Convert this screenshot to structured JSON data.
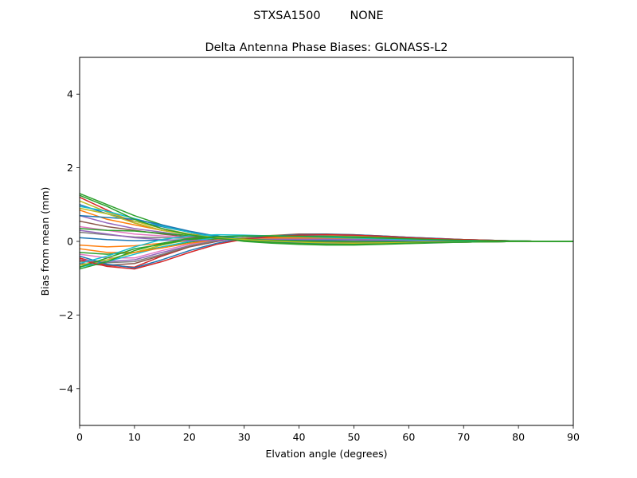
{
  "figure": {
    "suptitle": "STXSA1500        NONE"
  },
  "chart_data": {
    "type": "line",
    "title": "Delta Antenna Phase Biases: GLONASS-L2",
    "xlabel": "Elvation angle (degrees)",
    "ylabel": "Bias from mean (mm)",
    "xlim": [
      0,
      90
    ],
    "ylim": [
      -5,
      5
    ],
    "xticks": [
      0,
      10,
      20,
      30,
      40,
      50,
      60,
      70,
      80,
      90
    ],
    "yticks": [
      -4,
      -2,
      0,
      2,
      4
    ],
    "ytick_labels": [
      "−4",
      "−2",
      "0",
      "2",
      "4"
    ],
    "grid": false,
    "legend": "none",
    "x": [
      0,
      5,
      10,
      15,
      20,
      25,
      30,
      35,
      40,
      45,
      50,
      55,
      60,
      65,
      70,
      75,
      80,
      85,
      90
    ],
    "series": [
      {
        "color": "#1f77b4",
        "values": [
          1.0,
          0.75,
          0.55,
          0.4,
          0.25,
          0.15,
          0.05,
          0.0,
          -0.05,
          -0.08,
          -0.08,
          -0.06,
          -0.04,
          -0.03,
          -0.02,
          -0.01,
          0.0,
          0.0,
          0.0
        ]
      },
      {
        "color": "#ff7f0e",
        "values": [
          0.85,
          0.6,
          0.45,
          0.3,
          0.2,
          0.12,
          0.06,
          0.02,
          -0.02,
          -0.05,
          -0.06,
          -0.05,
          -0.04,
          -0.03,
          -0.02,
          -0.01,
          0.0,
          0.0,
          0.0
        ]
      },
      {
        "color": "#2ca02c",
        "values": [
          1.3,
          1.0,
          0.7,
          0.45,
          0.25,
          0.1,
          0.0,
          -0.05,
          -0.08,
          -0.1,
          -0.1,
          -0.08,
          -0.06,
          -0.04,
          -0.02,
          -0.01,
          0.0,
          0.0,
          0.0
        ]
      },
      {
        "color": "#d62728",
        "values": [
          1.2,
          0.85,
          0.5,
          0.3,
          0.2,
          0.12,
          0.05,
          0.0,
          -0.04,
          -0.07,
          -0.07,
          -0.06,
          -0.04,
          -0.03,
          -0.02,
          -0.01,
          0.0,
          0.0,
          0.0
        ]
      },
      {
        "color": "#9467bd",
        "values": [
          0.7,
          0.5,
          0.35,
          0.25,
          0.15,
          0.1,
          0.05,
          0.02,
          0.0,
          -0.02,
          -0.03,
          -0.03,
          -0.02,
          -0.02,
          -0.01,
          0.0,
          0.0,
          0.0,
          0.0
        ]
      },
      {
        "color": "#8c564b",
        "values": [
          0.55,
          0.4,
          0.3,
          0.2,
          0.12,
          0.08,
          0.04,
          0.02,
          0.0,
          -0.01,
          -0.02,
          -0.02,
          -0.02,
          -0.01,
          -0.01,
          0.0,
          0.0,
          0.0,
          0.0
        ]
      },
      {
        "color": "#e377c2",
        "values": [
          0.4,
          0.3,
          0.2,
          0.15,
          0.1,
          0.06,
          0.03,
          0.02,
          0.01,
          0.0,
          -0.01,
          -0.01,
          -0.01,
          -0.01,
          0.0,
          0.0,
          0.0,
          0.0,
          0.0
        ]
      },
      {
        "color": "#7f7f7f",
        "values": [
          0.25,
          0.18,
          0.12,
          0.1,
          0.08,
          0.06,
          0.04,
          0.03,
          0.02,
          0.02,
          0.01,
          0.01,
          0.01,
          0.0,
          0.0,
          0.0,
          0.0,
          0.0,
          0.0
        ]
      },
      {
        "color": "#bcbd22",
        "values": [
          1.1,
          0.8,
          0.55,
          0.35,
          0.2,
          0.1,
          0.03,
          -0.02,
          -0.05,
          -0.07,
          -0.07,
          -0.06,
          -0.05,
          -0.03,
          -0.02,
          -0.01,
          0.0,
          0.0,
          0.0
        ]
      },
      {
        "color": "#17becf",
        "values": [
          0.95,
          0.82,
          0.62,
          0.42,
          0.25,
          0.12,
          0.04,
          -0.02,
          -0.05,
          -0.06,
          -0.06,
          -0.05,
          -0.04,
          -0.03,
          -0.02,
          -0.01,
          0.0,
          0.0,
          0.0
        ]
      },
      {
        "color": "#1f77b4",
        "values": [
          0.1,
          0.05,
          0.02,
          0.03,
          0.05,
          0.06,
          0.06,
          0.05,
          0.05,
          0.04,
          0.04,
          0.03,
          0.02,
          0.02,
          0.01,
          0.01,
          0.0,
          0.0,
          0.0
        ]
      },
      {
        "color": "#ff7f0e",
        "values": [
          -0.1,
          -0.15,
          -0.12,
          -0.05,
          0.02,
          0.06,
          0.08,
          0.09,
          0.09,
          0.08,
          0.07,
          0.06,
          0.05,
          0.03,
          0.02,
          0.01,
          0.01,
          0.0,
          0.0
        ]
      },
      {
        "color": "#2ca02c",
        "values": [
          -0.3,
          -0.35,
          -0.3,
          -0.15,
          -0.02,
          0.06,
          0.1,
          0.12,
          0.12,
          0.11,
          0.1,
          0.08,
          0.06,
          0.04,
          0.03,
          0.02,
          0.01,
          0.0,
          0.0
        ]
      },
      {
        "color": "#d62728",
        "values": [
          -0.45,
          -0.65,
          -0.7,
          -0.4,
          -0.15,
          0.0,
          0.1,
          0.15,
          0.17,
          0.17,
          0.15,
          0.12,
          0.09,
          0.06,
          0.04,
          0.02,
          0.01,
          0.0,
          0.0
        ]
      },
      {
        "color": "#9467bd",
        "values": [
          -0.5,
          -0.55,
          -0.5,
          -0.3,
          -0.12,
          0.02,
          0.1,
          0.15,
          0.18,
          0.18,
          0.16,
          0.13,
          0.1,
          0.07,
          0.05,
          0.03,
          0.01,
          0.0,
          0.0
        ]
      },
      {
        "color": "#8c564b",
        "values": [
          -0.6,
          -0.65,
          -0.6,
          -0.38,
          -0.15,
          0.0,
          0.1,
          0.16,
          0.2,
          0.2,
          0.18,
          0.15,
          0.11,
          0.08,
          0.05,
          0.03,
          0.01,
          0.0,
          0.0
        ]
      },
      {
        "color": "#e377c2",
        "values": [
          -0.35,
          -0.45,
          -0.45,
          -0.25,
          -0.08,
          0.04,
          0.1,
          0.14,
          0.16,
          0.16,
          0.15,
          0.12,
          0.09,
          0.06,
          0.04,
          0.02,
          0.01,
          0.0,
          0.0
        ]
      },
      {
        "color": "#7f7f7f",
        "values": [
          -0.55,
          -0.58,
          -0.55,
          -0.35,
          -0.12,
          0.02,
          0.1,
          0.15,
          0.18,
          0.18,
          0.16,
          0.13,
          0.1,
          0.07,
          0.04,
          0.02,
          0.01,
          0.0,
          0.0
        ]
      },
      {
        "color": "#bcbd22",
        "values": [
          -0.65,
          -0.5,
          -0.3,
          -0.1,
          0.05,
          0.12,
          0.15,
          0.16,
          0.16,
          0.15,
          0.13,
          0.11,
          0.08,
          0.05,
          0.03,
          0.02,
          0.01,
          0.0,
          0.0
        ]
      },
      {
        "color": "#17becf",
        "values": [
          -0.7,
          -0.55,
          -0.35,
          -0.15,
          0.0,
          0.1,
          0.14,
          0.15,
          0.15,
          0.14,
          0.12,
          0.1,
          0.07,
          0.05,
          0.03,
          0.02,
          0.01,
          0.0,
          0.0
        ]
      },
      {
        "color": "#1f77b4",
        "values": [
          -0.4,
          -0.62,
          -0.72,
          -0.5,
          -0.25,
          -0.05,
          0.08,
          0.14,
          0.18,
          0.19,
          0.18,
          0.15,
          0.11,
          0.08,
          0.05,
          0.03,
          0.01,
          0.0,
          0.0
        ]
      },
      {
        "color": "#ff7f0e",
        "values": [
          -0.2,
          -0.3,
          -0.3,
          -0.18,
          -0.05,
          0.04,
          0.08,
          0.1,
          0.11,
          0.11,
          0.1,
          0.08,
          0.06,
          0.04,
          0.03,
          0.02,
          0.01,
          0.0,
          0.0
        ]
      },
      {
        "color": "#2ca02c",
        "values": [
          -0.7,
          -0.45,
          -0.2,
          -0.08,
          0.05,
          0.12,
          0.15,
          0.15,
          0.14,
          0.13,
          0.12,
          0.1,
          0.08,
          0.05,
          0.03,
          0.02,
          0.01,
          0.0,
          0.0
        ]
      },
      {
        "color": "#d62728",
        "values": [
          -0.5,
          -0.68,
          -0.75,
          -0.55,
          -0.3,
          -0.08,
          0.06,
          0.13,
          0.17,
          0.18,
          0.17,
          0.14,
          0.1,
          0.07,
          0.05,
          0.03,
          0.01,
          0.0,
          0.0
        ]
      },
      {
        "color": "#9467bd",
        "values": [
          0.3,
          0.2,
          0.1,
          0.05,
          0.02,
          0.03,
          0.05,
          0.06,
          0.06,
          0.06,
          0.05,
          0.04,
          0.03,
          0.02,
          0.01,
          0.01,
          0.0,
          0.0,
          0.0
        ]
      },
      {
        "color": "#1f77b4",
        "values": [
          0.7,
          0.65,
          0.6,
          0.45,
          0.28,
          0.14,
          0.05,
          0.0,
          -0.04,
          -0.06,
          -0.06,
          -0.05,
          -0.04,
          -0.03,
          -0.02,
          -0.01,
          0.0,
          0.0,
          0.0
        ]
      },
      {
        "color": "#2ca02c",
        "values": [
          0.35,
          0.3,
          0.28,
          0.22,
          0.16,
          0.1,
          0.06,
          0.03,
          0.01,
          0.0,
          -0.01,
          -0.01,
          -0.01,
          -0.01,
          0.0,
          0.0,
          0.0,
          0.0,
          0.0
        ]
      },
      {
        "color": "#17becf",
        "values": [
          -0.6,
          -0.4,
          -0.15,
          0.05,
          0.15,
          0.18,
          0.17,
          0.15,
          0.13,
          0.11,
          0.09,
          0.07,
          0.05,
          0.04,
          0.02,
          0.01,
          0.01,
          0.0,
          0.0
        ]
      },
      {
        "color": "#bcbd22",
        "values": [
          0.9,
          0.75,
          0.5,
          0.3,
          0.18,
          0.1,
          0.05,
          0.01,
          -0.02,
          -0.04,
          -0.05,
          -0.04,
          -0.03,
          -0.02,
          -0.02,
          -0.01,
          0.0,
          0.0,
          0.0
        ]
      },
      {
        "color": "#2ca02c",
        "values": [
          1.25,
          0.95,
          0.6,
          0.35,
          0.18,
          0.08,
          0.02,
          -0.03,
          -0.06,
          -0.08,
          -0.08,
          -0.07,
          -0.05,
          -0.03,
          -0.02,
          -0.01,
          0.0,
          0.0,
          0.0
        ]
      },
      {
        "color": "#2ca02c",
        "values": [
          -0.75,
          -0.55,
          -0.25,
          -0.05,
          0.08,
          0.13,
          0.15,
          0.15,
          0.14,
          0.13,
          0.11,
          0.09,
          0.07,
          0.05,
          0.03,
          0.02,
          0.01,
          0.0,
          0.0
        ]
      }
    ]
  }
}
